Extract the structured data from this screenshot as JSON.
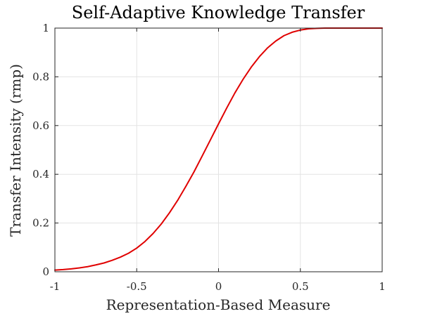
{
  "chart_data": {
    "type": "line",
    "title": "Self-Adaptive Knowledge Transfer",
    "xlabel": "Representation-Based Measure",
    "ylabel": "Transfer Intensity (rmp)",
    "xlim": [
      -1,
      1
    ],
    "ylim": [
      0,
      1
    ],
    "xticks": [
      -1,
      -0.5,
      0,
      0.5,
      1
    ],
    "xtick_labels": [
      "-1",
      "-0.5",
      "0",
      "0.5",
      "1"
    ],
    "yticks": [
      0,
      0.2,
      0.4,
      0.6,
      0.8,
      1
    ],
    "ytick_labels": [
      "0",
      "0.2",
      "0.4",
      "0.6",
      "0.8",
      "1"
    ],
    "grid": true,
    "series": [
      {
        "color": "#e00000",
        "x": [
          -1.0,
          -0.95,
          -0.9,
          -0.85,
          -0.8,
          -0.75,
          -0.7,
          -0.65,
          -0.6,
          -0.55,
          -0.5,
          -0.45,
          -0.4,
          -0.35,
          -0.3,
          -0.25,
          -0.2,
          -0.15,
          -0.1,
          -0.05,
          0.0,
          0.05,
          0.1,
          0.15,
          0.2,
          0.25,
          0.3,
          0.35,
          0.4,
          0.45,
          0.5,
          0.55,
          0.6,
          0.65,
          0.7,
          0.75,
          0.8,
          0.85,
          0.9,
          0.95,
          1.0
        ],
        "y": [
          0.007,
          0.009,
          0.012,
          0.016,
          0.021,
          0.028,
          0.036,
          0.047,
          0.06,
          0.076,
          0.097,
          0.124,
          0.157,
          0.196,
          0.242,
          0.293,
          0.35,
          0.41,
          0.475,
          0.541,
          0.607,
          0.672,
          0.734,
          0.79,
          0.84,
          0.883,
          0.919,
          0.947,
          0.969,
          0.983,
          0.992,
          0.997,
          0.999,
          1.0,
          1.0,
          1.0,
          1.0,
          1.0,
          1.0,
          1.0,
          1.0
        ]
      }
    ]
  }
}
